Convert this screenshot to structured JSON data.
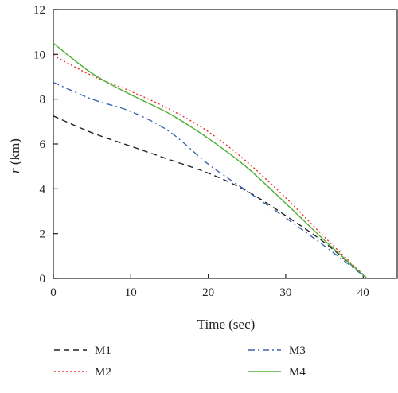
{
  "chart_data": {
    "type": "line",
    "xlabel": "Time (sec)",
    "ylabel_italic": "r",
    "ylabel_unit": " (km)",
    "xlim": [
      0,
      44.5
    ],
    "ylim": [
      0,
      12
    ],
    "xticks": [
      0,
      10,
      20,
      30,
      40
    ],
    "yticks": [
      0,
      2,
      4,
      6,
      8,
      10,
      12
    ],
    "grid": false,
    "legend_position": "bottom",
    "series": [
      {
        "name": "M1",
        "color": "#222222",
        "dash": "dashed",
        "x": [
          0,
          5,
          10,
          15,
          20,
          25,
          30,
          35,
          40.5
        ],
        "y": [
          7.25,
          6.5,
          5.9,
          5.3,
          4.7,
          3.9,
          2.8,
          1.6,
          0.0
        ]
      },
      {
        "name": "M2",
        "color": "#e8302a",
        "dash": "dotted",
        "x": [
          0,
          5,
          10,
          15,
          20,
          25,
          30,
          35,
          40.5
        ],
        "y": [
          9.95,
          9.05,
          8.35,
          7.55,
          6.55,
          5.2,
          3.6,
          1.85,
          0.0
        ]
      },
      {
        "name": "M3",
        "color": "#3a64b0",
        "dash": "dashdot",
        "x": [
          0,
          5,
          10,
          15,
          20,
          25,
          30,
          35,
          40.5
        ],
        "y": [
          8.75,
          8.0,
          7.45,
          6.55,
          5.1,
          3.9,
          2.7,
          1.45,
          0.0
        ]
      },
      {
        "name": "M4",
        "color": "#4caf33",
        "dash": "solid",
        "x": [
          0,
          5,
          10,
          15,
          20,
          25,
          30,
          35,
          40.5
        ],
        "y": [
          10.5,
          9.15,
          8.2,
          7.35,
          6.25,
          4.95,
          3.35,
          1.7,
          0.0
        ]
      }
    ]
  }
}
